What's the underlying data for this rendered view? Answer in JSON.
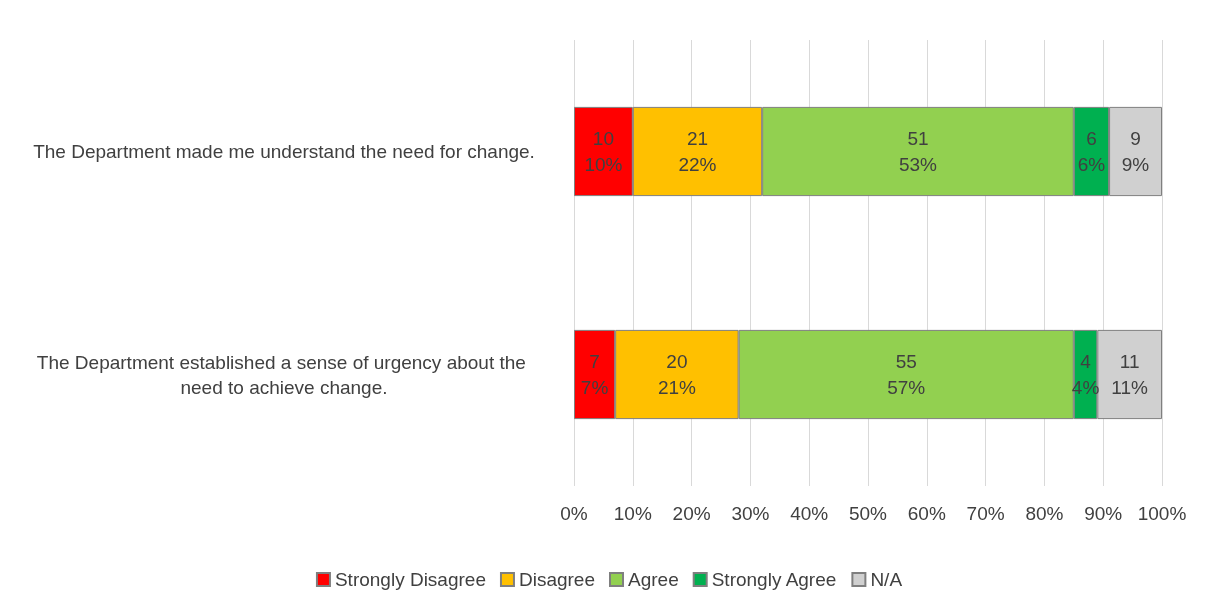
{
  "chart_data": {
    "type": "bar",
    "orientation": "horizontal",
    "stacked": true,
    "categories": [
      "The Department made me understand the need for change.",
      "The Department established a sense of urgency about the need to achieve change."
    ],
    "series": [
      {
        "name": "Strongly Disagree",
        "color": "#ff0000",
        "values": [
          10,
          7
        ],
        "value_labels": [
          "10\n10%",
          "7\n7%"
        ]
      },
      {
        "name": "Disagree",
        "color": "#ffc000",
        "values": [
          22,
          21
        ],
        "value_labels": [
          "21\n22%",
          "20\n21%"
        ]
      },
      {
        "name": "Agree",
        "color": "#92d050",
        "values": [
          53,
          57
        ],
        "value_labels": [
          "51\n53%",
          "55\n57%"
        ]
      },
      {
        "name": "Strongly Agree",
        "color": "#00b050",
        "values": [
          6,
          4
        ],
        "value_labels": [
          "6\n6%",
          "4\n4%"
        ]
      },
      {
        "name": "N/A",
        "color": "#d0d0d0",
        "values": [
          9,
          11
        ],
        "value_labels": [
          "9\n9%",
          "11\n11%"
        ]
      }
    ],
    "xlim": [
      0,
      100
    ],
    "xticks": [
      {
        "value": 0,
        "label": "0%"
      },
      {
        "value": 10,
        "label": "10%"
      },
      {
        "value": 20,
        "label": "20%"
      },
      {
        "value": 30,
        "label": "30%"
      },
      {
        "value": 40,
        "label": "40%"
      },
      {
        "value": 50,
        "label": "50%"
      },
      {
        "value": 60,
        "label": "60%"
      },
      {
        "value": 70,
        "label": "70%"
      },
      {
        "value": 80,
        "label": "80%"
      },
      {
        "value": 90,
        "label": "90%"
      },
      {
        "value": 100,
        "label": "100%"
      }
    ],
    "grid": "x",
    "legend": "bottom"
  }
}
